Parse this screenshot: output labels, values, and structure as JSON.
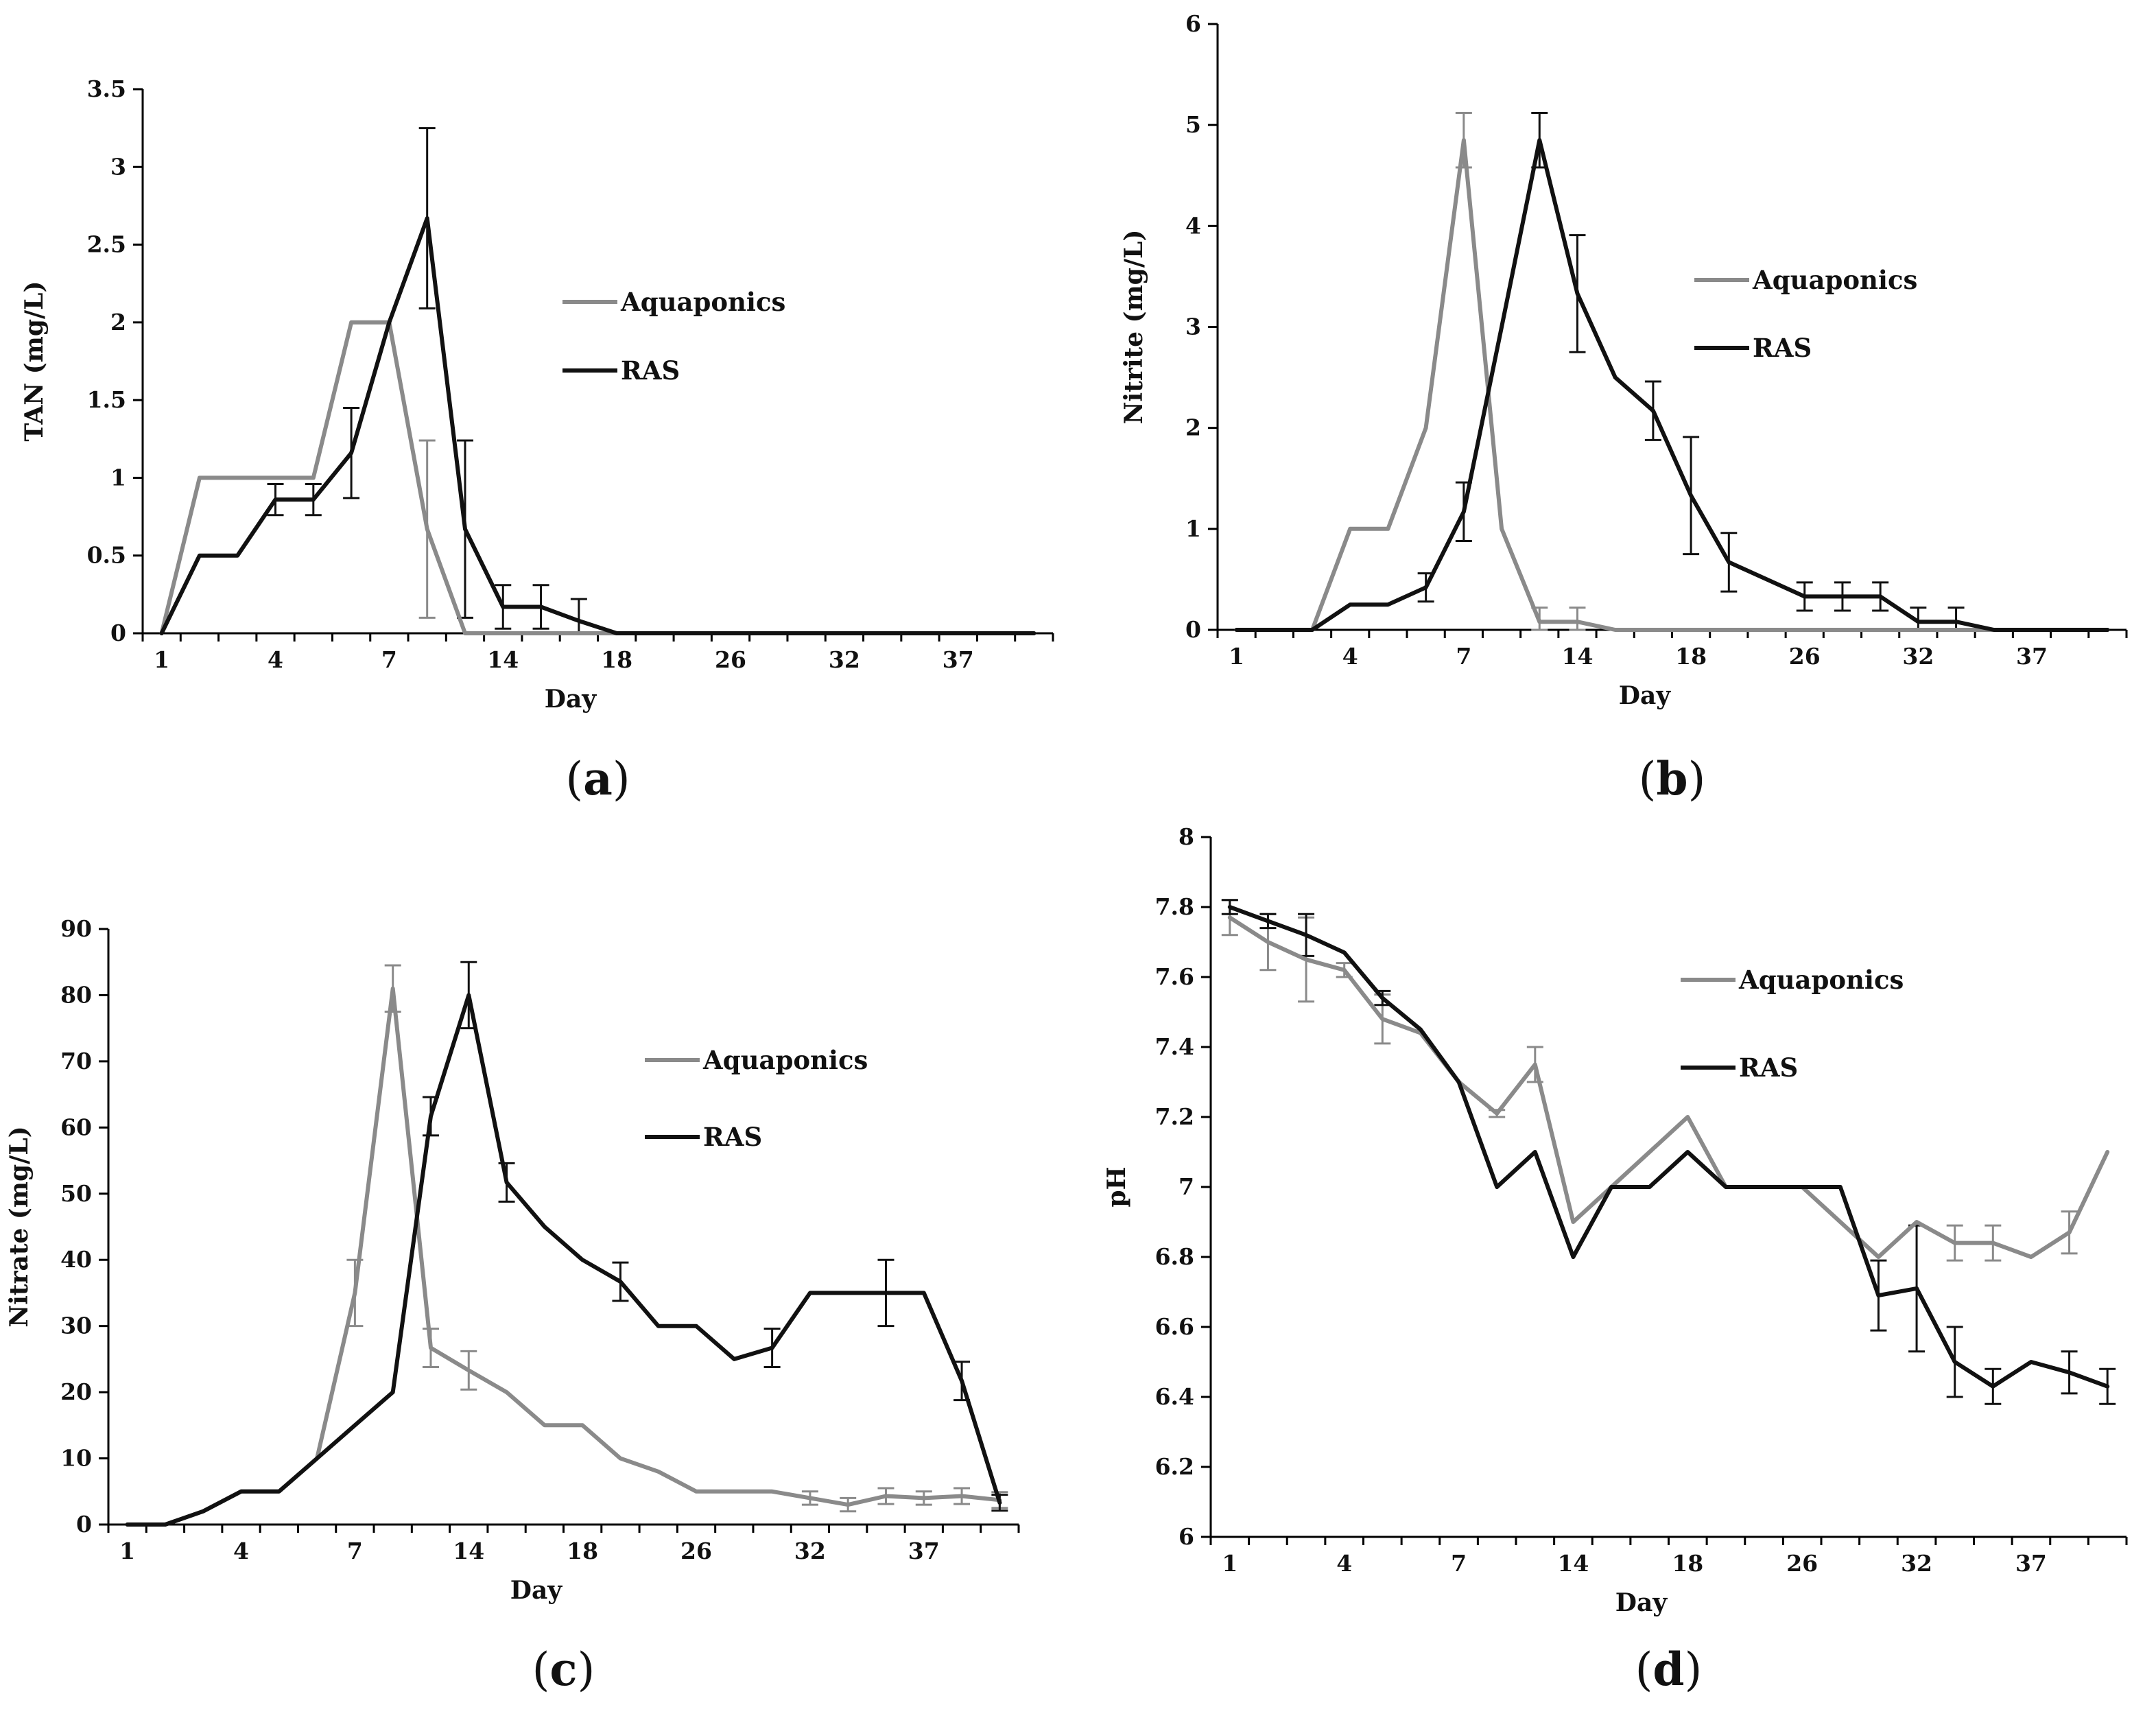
{
  "series_colors": {
    "Aquaponics": "#8a8a8a",
    "RAS": "#111111"
  },
  "chart_data": [
    {
      "type": "line",
      "panel_label": "(a)",
      "panel_letter": "a",
      "xlabel": "Day",
      "ylabel": "TAN (mg/L)",
      "ylim": [
        0,
        3.5
      ],
      "yticks": [
        0,
        0.5,
        1,
        1.5,
        2,
        2.5,
        3,
        3.5
      ],
      "ytick_labels": [
        "0",
        "0.5",
        "1",
        "1.5",
        "2",
        "2.5",
        "3",
        "3.5"
      ],
      "x_count": 24,
      "xtick_index": [
        0,
        3,
        6,
        9,
        12,
        15,
        18,
        21
      ],
      "xtick_labels": [
        "1",
        "4",
        "7",
        "14",
        "18",
        "26",
        "32",
        "37"
      ],
      "legend": [
        "Aquaponics",
        "RAS"
      ],
      "series": [
        {
          "name": "Aquaponics",
          "values": [
            0,
            1,
            1,
            1,
            1,
            2,
            2,
            0.67,
            0,
            0,
            0,
            0,
            0,
            0,
            0,
            0,
            0,
            0,
            0,
            0,
            0,
            0,
            0,
            0
          ],
          "errors": [
            0,
            0,
            0,
            0,
            0,
            0,
            0,
            0.57,
            0,
            0,
            0,
            0,
            0,
            0,
            0,
            0,
            0,
            0,
            0,
            0,
            0,
            0,
            0,
            0
          ]
        },
        {
          "name": "RAS",
          "values": [
            0,
            0.5,
            0.5,
            0.86,
            0.86,
            1.16,
            2,
            2.67,
            0.67,
            0.17,
            0.17,
            0.08,
            0,
            0,
            0,
            0,
            0,
            0,
            0,
            0,
            0,
            0,
            0,
            0
          ],
          "errors": [
            0,
            0,
            0,
            0.1,
            0.1,
            0.29,
            0,
            0.58,
            0.57,
            0.14,
            0.14,
            0.14,
            0,
            0,
            0,
            0,
            0,
            0,
            0,
            0,
            0,
            0,
            0,
            0
          ]
        }
      ]
    },
    {
      "type": "line",
      "panel_label": "(b)",
      "panel_letter": "b",
      "xlabel": "Day",
      "ylabel": "Nitrite (mg/L)",
      "ylim": [
        0,
        6
      ],
      "yticks": [
        0,
        1,
        2,
        3,
        4,
        5,
        6
      ],
      "ytick_labels": [
        "0",
        "1",
        "2",
        "3",
        "4",
        "5",
        "6"
      ],
      "x_count": 24,
      "xtick_index": [
        0,
        3,
        6,
        9,
        12,
        15,
        18,
        21
      ],
      "xtick_labels": [
        "1",
        "4",
        "7",
        "14",
        "18",
        "26",
        "32",
        "37"
      ],
      "legend": [
        "Aquaponics",
        "RAS"
      ],
      "series": [
        {
          "name": "Aquaponics",
          "values": [
            0,
            0,
            0,
            1,
            1,
            2,
            4.85,
            1,
            0.08,
            0.08,
            0,
            0,
            0,
            0,
            0,
            0,
            0,
            0,
            0,
            0,
            0,
            0,
            0,
            0
          ],
          "errors": [
            0,
            0,
            0,
            0,
            0,
            0,
            0.27,
            0,
            0.14,
            0.14,
            0,
            0,
            0,
            0,
            0,
            0,
            0,
            0,
            0,
            0,
            0,
            0,
            0,
            0
          ]
        },
        {
          "name": "RAS",
          "values": [
            0,
            0,
            0,
            0.25,
            0.25,
            0.42,
            1.17,
            3,
            4.85,
            3.33,
            2.5,
            2.17,
            1.33,
            0.67,
            0.5,
            0.33,
            0.33,
            0.33,
            0.08,
            0.08,
            0,
            0,
            0,
            0
          ],
          "errors": [
            0,
            0,
            0,
            0,
            0,
            0.14,
            0.29,
            0,
            0.27,
            0.58,
            0,
            0.29,
            0.58,
            0.29,
            0,
            0.14,
            0.14,
            0.14,
            0.14,
            0.14,
            0,
            0,
            0,
            0
          ]
        }
      ]
    },
    {
      "type": "line",
      "panel_label": "(c)",
      "panel_letter": "c",
      "xlabel": "Day",
      "ylabel": "Nitrate (mg/L)",
      "ylim": [
        0,
        90
      ],
      "yticks": [
        0,
        10,
        20,
        30,
        40,
        50,
        60,
        70,
        80,
        90
      ],
      "ytick_labels": [
        "0",
        "10",
        "20",
        "30",
        "40",
        "50",
        "60",
        "70",
        "80",
        "90"
      ],
      "x_count": 24,
      "xtick_index": [
        0,
        3,
        6,
        9,
        12,
        15,
        18,
        21
      ],
      "xtick_labels": [
        "1",
        "4",
        "7",
        "14",
        "18",
        "26",
        "32",
        "37"
      ],
      "legend": [
        "Aquaponics",
        "RAS"
      ],
      "series": [
        {
          "name": "Aquaponics",
          "values": [
            0,
            0,
            2,
            5,
            5,
            10,
            35,
            81,
            26.7,
            23.3,
            20,
            15,
            15,
            10,
            8,
            5,
            5,
            5,
            4,
            3,
            4.3,
            4,
            4.3,
            3.7
          ],
          "errors": [
            0,
            0,
            0,
            0,
            0,
            0,
            5,
            3.5,
            2.9,
            2.9,
            0,
            0,
            0,
            0,
            0,
            0,
            0,
            0,
            1,
            1,
            1.2,
            1,
            1.2,
            1.2
          ]
        },
        {
          "name": "RAS",
          "values": [
            0,
            0,
            2,
            5,
            5,
            10,
            15,
            20,
            61.7,
            80,
            51.7,
            45,
            40,
            36.7,
            30,
            30,
            25,
            26.7,
            35,
            35,
            35,
            35,
            21.7,
            3.3
          ],
          "errors": [
            0,
            0,
            0,
            0,
            0,
            0,
            0,
            0,
            2.9,
            5,
            2.9,
            0,
            0,
            2.9,
            0,
            0,
            0,
            2.9,
            0,
            0,
            5,
            0,
            2.9,
            1.2
          ]
        }
      ]
    },
    {
      "type": "line",
      "panel_label": "(d)",
      "panel_letter": "d",
      "xlabel": "Day",
      "ylabel": "pH",
      "ylim": [
        6,
        8
      ],
      "yticks": [
        6,
        6.2,
        6.4,
        6.6,
        6.8,
        7,
        7.2,
        7.4,
        7.6,
        7.8,
        8
      ],
      "ytick_labels": [
        "6",
        "6.2",
        "6.4",
        "6.6",
        "6.8",
        "7",
        "7.2",
        "7.4",
        "7.6",
        "7.8",
        "8"
      ],
      "x_count": 24,
      "xtick_index": [
        0,
        3,
        6,
        9,
        12,
        15,
        18,
        21
      ],
      "xtick_labels": [
        "1",
        "4",
        "7",
        "14",
        "18",
        "26",
        "32",
        "37"
      ],
      "legend": [
        "Aquaponics",
        "RAS"
      ],
      "series": [
        {
          "name": "Aquaponics",
          "values": [
            7.77,
            7.7,
            7.65,
            7.62,
            7.48,
            7.44,
            7.3,
            7.21,
            7.35,
            6.9,
            7,
            7.1,
            7.2,
            7,
            7,
            7,
            6.9,
            6.8,
            6.9,
            6.84,
            6.84,
            6.8,
            6.87,
            7.1
          ],
          "errors": [
            0.05,
            0.08,
            0.12,
            0.02,
            0.07,
            0,
            0,
            0.01,
            0.05,
            0,
            0,
            0,
            0,
            0,
            0,
            0,
            0,
            0,
            0,
            0.05,
            0.05,
            0,
            0.06,
            0
          ]
        },
        {
          "name": "RAS",
          "values": [
            7.8,
            7.76,
            7.72,
            7.67,
            7.54,
            7.45,
            7.3,
            7,
            7.1,
            6.8,
            7,
            7,
            7.1,
            7,
            7,
            7,
            7,
            6.69,
            6.71,
            6.5,
            6.43,
            6.5,
            6.47,
            6.43
          ],
          "errors": [
            0.02,
            0.02,
            0.06,
            0,
            0.02,
            0,
            0,
            0,
            0,
            0,
            0,
            0,
            0,
            0,
            0,
            0,
            0,
            0.1,
            0.18,
            0.1,
            0.05,
            0,
            0.06,
            0.05
          ]
        }
      ]
    }
  ]
}
